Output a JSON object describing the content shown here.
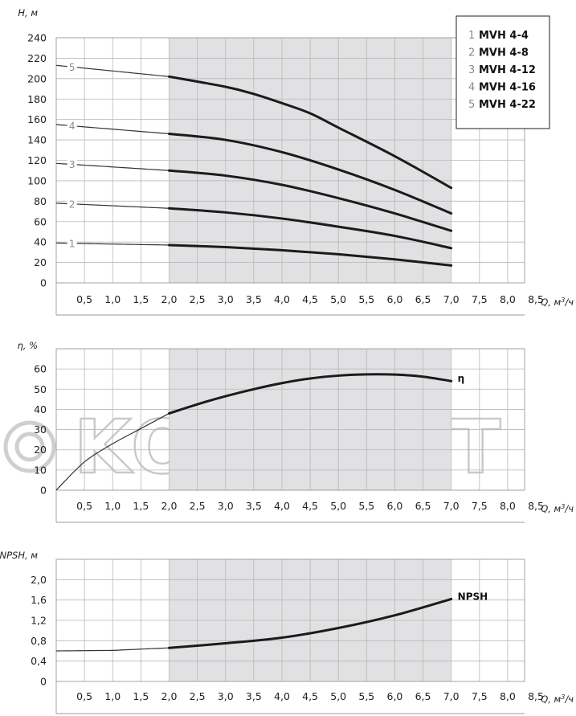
{
  "watermark": "KOMFORT",
  "chart_data": [
    {
      "type": "line",
      "xlabel": "Q, м³/ч",
      "ylabel": "H, м",
      "xlim": [
        0,
        8.5
      ],
      "ylim": [
        0,
        240
      ],
      "x_ticks": [
        "0,5",
        "1,0",
        "1,5",
        "2,0",
        "2,5",
        "3,0",
        "3,5",
        "4,0",
        "4,5",
        "5,0",
        "5,5",
        "6,0",
        "6,5",
        "7,0",
        "7,5",
        "8,0",
        "8,5"
      ],
      "y_ticks": [
        "0",
        "20",
        "40",
        "60",
        "80",
        "100",
        "120",
        "140",
        "160",
        "180",
        "200",
        "220",
        "240"
      ],
      "shaded_range": [
        2.0,
        7.0
      ],
      "legend": {
        "placement": "top-right",
        "entries": [
          {
            "num": "1",
            "name": "MVH 4-4"
          },
          {
            "num": "2",
            "name": "MVH 4-8"
          },
          {
            "num": "3",
            "name": "MVH 4-12"
          },
          {
            "num": "4",
            "name": "MVH 4-16"
          },
          {
            "num": "5",
            "name": "MVH 4-22"
          }
        ]
      },
      "series": [
        {
          "name": "1",
          "x": [
            0,
            2.0,
            3.0,
            4.0,
            5.0,
            6.0,
            7.0
          ],
          "values": [
            39,
            37,
            35,
            32,
            28,
            23,
            17
          ]
        },
        {
          "name": "2",
          "x": [
            0,
            2.0,
            3.0,
            4.0,
            5.0,
            6.0,
            7.0
          ],
          "values": [
            78,
            73,
            69,
            63,
            55,
            46,
            34
          ]
        },
        {
          "name": "3",
          "x": [
            0,
            2.0,
            3.0,
            4.0,
            5.0,
            6.0,
            7.0
          ],
          "values": [
            117,
            110,
            105,
            96,
            83,
            68,
            51
          ]
        },
        {
          "name": "4",
          "x": [
            0,
            2.0,
            3.0,
            4.0,
            5.0,
            6.0,
            7.0
          ],
          "values": [
            155,
            146,
            140,
            128,
            111,
            91,
            68
          ]
        },
        {
          "name": "5",
          "x": [
            0,
            2.0,
            3.0,
            3.5,
            4.0,
            4.5,
            5.0,
            6.0,
            7.0
          ],
          "values": [
            213,
            202,
            192,
            185,
            176,
            166,
            152,
            124,
            93
          ]
        }
      ]
    },
    {
      "type": "line",
      "xlabel": "Q, м³/ч",
      "ylabel": "η, %",
      "xlim": [
        0,
        8.5
      ],
      "ylim": [
        0,
        60
      ],
      "x_ticks": [
        "0,5",
        "1,0",
        "1,5",
        "2,0",
        "2,5",
        "3,0",
        "3,5",
        "4,0",
        "4,5",
        "5,0",
        "5,5",
        "6,0",
        "6,5",
        "7,0",
        "7,5",
        "8,0",
        "8,5"
      ],
      "y_ticks": [
        "0",
        "10",
        "20",
        "30",
        "40",
        "50",
        "60"
      ],
      "shaded_range": [
        2.0,
        7.0
      ],
      "series": [
        {
          "name": "η",
          "x": [
            0,
            0.5,
            1.0,
            1.5,
            2.0,
            2.5,
            3.0,
            3.5,
            4.0,
            4.5,
            5.0,
            5.5,
            6.0,
            6.5,
            7.0
          ],
          "values": [
            0,
            14,
            23,
            30.5,
            38,
            42.5,
            46.5,
            50,
            53,
            55.3,
            56.7,
            57.3,
            57.2,
            56.2,
            54
          ]
        }
      ]
    },
    {
      "type": "line",
      "xlabel": "Q, м³/ч",
      "ylabel": "NPSH, м",
      "xlim": [
        0,
        8.5
      ],
      "ylim": [
        0,
        2.4
      ],
      "x_ticks": [
        "0,5",
        "1,0",
        "1,5",
        "2,0",
        "2,5",
        "3,0",
        "3,5",
        "4,0",
        "4,5",
        "5,0",
        "5,5",
        "6,0",
        "6,5",
        "7,0",
        "7,5",
        "8,0",
        "8,5"
      ],
      "y_ticks": [
        "0",
        "0,4",
        "0,8",
        "1,2",
        "1,6",
        "2,0"
      ],
      "shaded_range": [
        2.0,
        7.0
      ],
      "series": [
        {
          "name": "NPSH",
          "x": [
            0,
            1.0,
            2.0,
            3.0,
            4.0,
            5.0,
            6.0,
            7.0
          ],
          "values": [
            0.6,
            0.61,
            0.66,
            0.75,
            0.86,
            1.05,
            1.3,
            1.62
          ]
        }
      ]
    }
  ]
}
